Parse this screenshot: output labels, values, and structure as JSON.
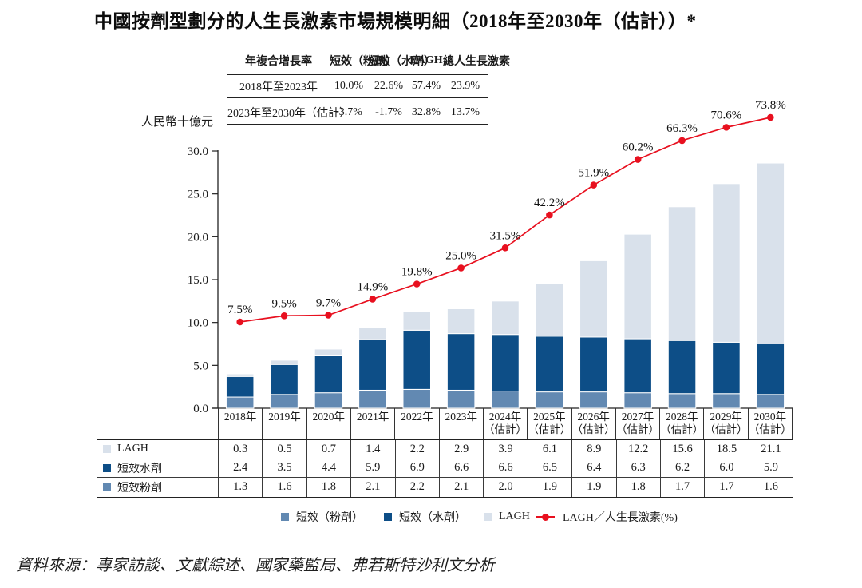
{
  "title": "中國按劑型劃分的人生長激素市場規模明細（2018年至2030年（估計））*",
  "cagr_table": {
    "header": [
      "年複合增長率",
      "短效（粉劑）",
      "短效（水劑）",
      "LAGH",
      "總人生長激素"
    ],
    "rows": [
      {
        "label": "2018年至2023年",
        "values": [
          "10.0%",
          "22.6%",
          "57.4%",
          "23.9%"
        ]
      },
      {
        "label": "2023年至2030年（估計）",
        "values": [
          "-3.7%",
          "-1.7%",
          "32.8%",
          "13.7%"
        ]
      }
    ]
  },
  "chart_data": {
    "type": "stacked-bar+line",
    "unit_label": "人民幣十億元",
    "ylim": [
      0,
      30
    ],
    "yticks": [
      "0.0",
      "5.0",
      "10.0",
      "15.0",
      "20.0",
      "25.0",
      "30.0"
    ],
    "grid": false,
    "legend_position": "bottom",
    "years": [
      {
        "label": "2018年",
        "note": ""
      },
      {
        "label": "2019年",
        "note": ""
      },
      {
        "label": "2020年",
        "note": ""
      },
      {
        "label": "2021年",
        "note": ""
      },
      {
        "label": "2022年",
        "note": ""
      },
      {
        "label": "2023年",
        "note": ""
      },
      {
        "label": "2024年",
        "note": "（估計）"
      },
      {
        "label": "2025年",
        "note": "（估計）"
      },
      {
        "label": "2026年",
        "note": "（估計）"
      },
      {
        "label": "2027年",
        "note": "（估計）"
      },
      {
        "label": "2028年",
        "note": "（估計）"
      },
      {
        "label": "2029年",
        "note": "（估計）"
      },
      {
        "label": "2030年",
        "note": "（估計）"
      }
    ],
    "stack_series": [
      {
        "legend_label": "短效（粉劑）",
        "table_label": "短效粉劑",
        "color": "#6289b2",
        "values": [
          1.3,
          1.6,
          1.8,
          2.1,
          2.2,
          2.1,
          2.0,
          1.9,
          1.9,
          1.8,
          1.7,
          1.7,
          1.6
        ]
      },
      {
        "legend_label": "短效（水劑）",
        "table_label": "短效水劑",
        "color": "#0d4e87",
        "values": [
          2.4,
          3.5,
          4.4,
          5.9,
          6.9,
          6.6,
          6.6,
          6.5,
          6.4,
          6.3,
          6.2,
          6.0,
          5.9
        ]
      },
      {
        "legend_label": "LAGH",
        "table_label": "LAGH",
        "color": "#d9e1eb",
        "values": [
          0.3,
          0.5,
          0.7,
          1.4,
          2.2,
          2.9,
          3.9,
          6.1,
          8.9,
          12.2,
          15.6,
          18.5,
          21.1
        ]
      }
    ],
    "line_series": {
      "legend_label": "LAGH／人生長激素(%)",
      "color": "#e8101f",
      "values_pct": [
        7.5,
        9.5,
        9.7,
        14.9,
        19.8,
        25.0,
        31.5,
        42.2,
        51.9,
        60.2,
        66.3,
        70.6,
        73.8
      ]
    },
    "text_color": "#1a1a1a"
  },
  "source": "資料來源：專家訪談、文獻綜述、國家藥監局、弗若斯特沙利文分析"
}
